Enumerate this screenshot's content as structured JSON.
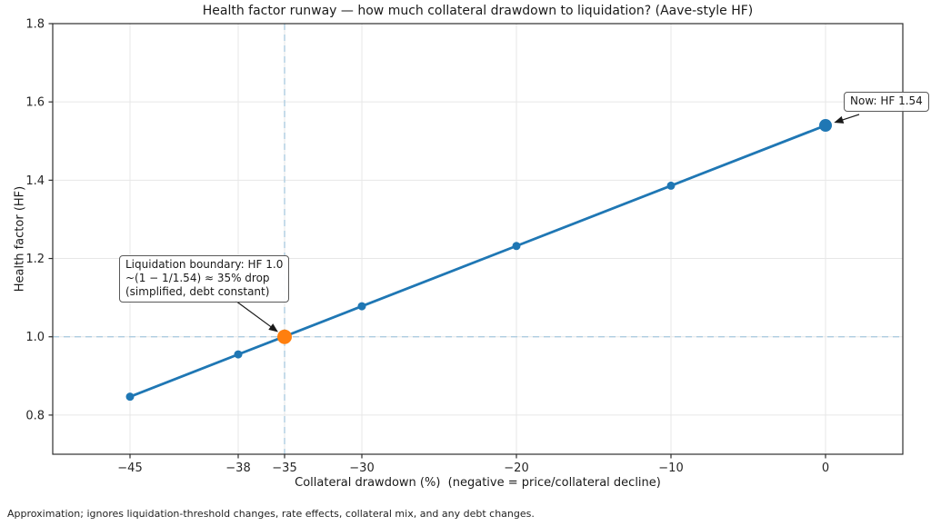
{
  "chart_data": {
    "type": "line",
    "title": "Health factor runway — how much collateral drawdown to liquidation? (Aave-style HF)",
    "xlabel": "Collateral drawdown (%)  (negative = price/collateral decline)",
    "ylabel": "Health factor (HF)",
    "x": [
      -45,
      -38,
      -35,
      -30,
      -20,
      -10,
      0
    ],
    "y": [
      0.847,
      0.955,
      1.001,
      1.078,
      1.232,
      1.386,
      1.54
    ],
    "xlim": [
      -50,
      5
    ],
    "ylim": [
      0.7,
      1.8
    ],
    "x_ticks": [
      -45,
      -38,
      -35,
      -30,
      -20,
      -10,
      0
    ],
    "x_tick_labels": [
      "−45",
      "−38",
      "−35",
      "−30",
      "−20",
      "−10",
      "0"
    ],
    "y_ticks": [
      0.8,
      1.0,
      1.2,
      1.4,
      1.6,
      1.8
    ],
    "y_tick_labels": [
      "0.8",
      "1.0",
      "1.2",
      "1.4",
      "1.6",
      "1.8"
    ],
    "grid": true,
    "legend": "none",
    "boundary_point": {
      "x": -35,
      "y": 1.0
    },
    "now_point": {
      "x": 0,
      "y": 1.54
    },
    "crosshair": {
      "x": -35,
      "y": 1.0
    },
    "annotations": [
      {
        "id": "liquidation-boundary",
        "lines": [
          "Liquidation boundary: HF 1.0",
          "~(1 − 1/1.54) ≈ 35% drop",
          "(simplified, debt constant)"
        ],
        "target": {
          "x": -35,
          "y": 1.0
        }
      },
      {
        "id": "now",
        "text": "Now: HF 1.54",
        "target": {
          "x": 0,
          "y": 1.54
        }
      }
    ],
    "footnote": "Approximation; ignores liquidation-threshold changes, rate effects, collateral mix, and any debt changes.",
    "colors": {
      "line": "#1f77b4",
      "highlight": "#ff7f0e",
      "crosshair": "#aecde0",
      "grid": "#e7e7e7",
      "spine": "#2e2e2e",
      "text": "#262626",
      "arrow": "#1a1a1a"
    }
  }
}
